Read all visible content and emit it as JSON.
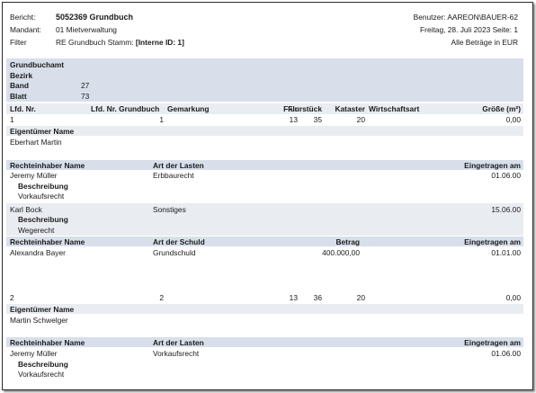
{
  "header": {
    "labels": {
      "bericht": "Bericht:",
      "mandant": "Mandant:",
      "filter": "Filter"
    },
    "bericht_value": "5052369 Grundbuch",
    "mandant_value": "01 Mietverwaltung",
    "filter_prefix": "RE Grundbuch Stamm:",
    "filter_value": "[Interne ID: 1]",
    "user": "Benutzer: AAREON\\BAUER-62",
    "date_page": "Freitag, 28. Juli 2023 Seite: 1",
    "currency": "Alle Beträge in EUR"
  },
  "grundbuch": {
    "amt_label": "Grundbuchamt",
    "bezirk_label": "Bezirk",
    "band_label": "Band",
    "band_value": "27",
    "blatt_label": "Blatt",
    "blatt_value": "73"
  },
  "columns": {
    "lfd_nr": "Lfd. Nr.",
    "lfd_nr_grundbuch": "Lfd. Nr. Grundbuch",
    "gemarkung": "Gemarkung",
    "flur": "Flur",
    "flurstueck": "Flurstück",
    "kataster": "Kataster",
    "wirtschaftsart": "Wirtschaftsart",
    "groesse": "Größe (m²)"
  },
  "labels": {
    "eigentuemer_name": "Eigentümer Name",
    "rechteinhaber_name": "Rechteinhaber Name",
    "art_der_lasten": "Art der Lasten",
    "art_der_schuld": "Art der Schuld",
    "betrag": "Betrag",
    "eingetragen_am": "Eingetragen am",
    "beschreibung": "Beschreibung"
  },
  "entry1": {
    "lfd_nr": "1",
    "lfd_nr_grundbuch": "1",
    "flur": "13",
    "flurstueck": "35",
    "kataster": "20",
    "groesse": "0,00",
    "eigentuemer": "Eberhart Martin",
    "lasten": [
      {
        "name": "Jeremy Müller",
        "art": "Erbbaurecht",
        "datum": "01.06.00",
        "beschreibung": "Vorkaufsrecht"
      },
      {
        "name": "Karl Bock",
        "art": "Sonstiges",
        "datum": "15.06.00",
        "beschreibung": "Wegerecht"
      }
    ],
    "schuld": {
      "name": "Alexandra Bayer",
      "art": "Grundschuld",
      "betrag": "400.000,00",
      "datum": "01.01.00"
    }
  },
  "entry2": {
    "lfd_nr": "2",
    "lfd_nr_grundbuch": "2",
    "flur": "13",
    "flurstueck": "36",
    "kataster": "20",
    "groesse": "0,00",
    "eigentuemer": "Martin Schwelger",
    "lasten": [
      {
        "name": "Jeremy Müller",
        "art": "Vorkaufsrecht",
        "datum": "01.06.00",
        "beschreibung": "Vorkaufsrecht"
      }
    ]
  }
}
